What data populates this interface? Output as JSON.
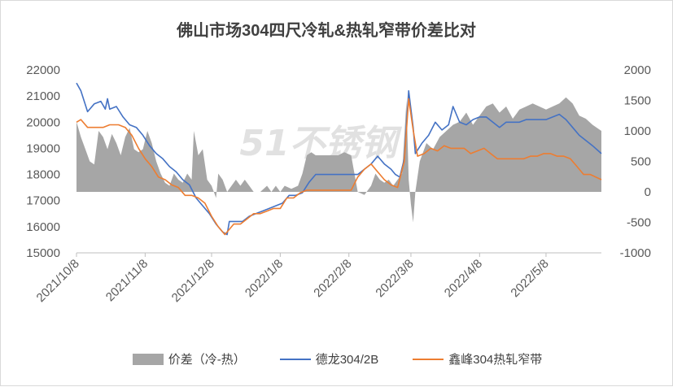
{
  "chart_data": {
    "type": "line",
    "title": "佛山市场304四尺冷轧&热轧窄带价差比对",
    "watermark": "51不锈钢",
    "x_tick_labels": [
      "2021/10/8",
      "2021/11/8",
      "2021/12/8",
      "2022/1/8",
      "2022/2/8",
      "2022/3/8",
      "2022/4/8",
      "2022/5/8"
    ],
    "x_range": [
      "2021-10-08",
      "2022-06-02"
    ],
    "y_left": {
      "ticks": [
        15000,
        16000,
        17000,
        18000,
        19000,
        20000,
        21000,
        22000
      ],
      "range": [
        15000,
        22000
      ]
    },
    "y_right": {
      "ticks": [
        -1000,
        -500,
        0,
        500,
        1000,
        1500,
        2000
      ],
      "range": [
        -1000,
        2000
      ]
    },
    "grid": false,
    "legend_position": "bottom",
    "series": [
      {
        "name": "价差（冷-热）",
        "type": "area",
        "axis": "right",
        "color": "#a6a6a6",
        "points": [
          [
            "2021-10-08",
            1150
          ],
          [
            "2021-10-10",
            900
          ],
          [
            "2021-10-12",
            700
          ],
          [
            "2021-10-14",
            500
          ],
          [
            "2021-10-16",
            450
          ],
          [
            "2021-10-18",
            1000
          ],
          [
            "2021-10-20",
            900
          ],
          [
            "2021-10-22",
            700
          ],
          [
            "2021-10-24",
            950
          ],
          [
            "2021-10-26",
            800
          ],
          [
            "2021-10-28",
            600
          ],
          [
            "2021-10-30",
            900
          ],
          [
            "2021-11-01",
            1050
          ],
          [
            "2021-11-03",
            700
          ],
          [
            "2021-11-05",
            650
          ],
          [
            "2021-11-07",
            700
          ],
          [
            "2021-11-09",
            1000
          ],
          [
            "2021-11-11",
            800
          ],
          [
            "2021-11-13",
            500
          ],
          [
            "2021-11-15",
            300
          ],
          [
            "2021-11-17",
            150
          ],
          [
            "2021-11-19",
            100
          ],
          [
            "2021-11-21",
            300
          ],
          [
            "2021-11-23",
            200
          ],
          [
            "2021-11-25",
            150
          ],
          [
            "2021-11-27",
            300
          ],
          [
            "2021-11-29",
            200
          ],
          [
            "2021-11-30",
            1000
          ],
          [
            "2021-12-02",
            600
          ],
          [
            "2021-12-04",
            700
          ],
          [
            "2021-12-06",
            200
          ],
          [
            "2021-12-08",
            100
          ],
          [
            "2021-12-10",
            -100
          ],
          [
            "2021-12-11",
            300
          ],
          [
            "2021-12-13",
            200
          ],
          [
            "2021-12-15",
            0
          ],
          [
            "2021-12-17",
            100
          ],
          [
            "2021-12-19",
            200
          ],
          [
            "2021-12-21",
            100
          ],
          [
            "2021-12-23",
            200
          ],
          [
            "2021-12-25",
            100
          ],
          [
            "2021-12-27",
            0
          ],
          [
            "2021-12-30",
            0
          ],
          [
            "2022-01-02",
            100
          ],
          [
            "2022-01-04",
            0
          ],
          [
            "2022-01-06",
            100
          ],
          [
            "2022-01-08",
            0
          ],
          [
            "2022-01-10",
            100
          ],
          [
            "2022-01-13",
            50
          ],
          [
            "2022-01-16",
            100
          ],
          [
            "2022-01-18",
            300
          ],
          [
            "2022-01-20",
            600
          ],
          [
            "2022-01-22",
            650
          ],
          [
            "2022-01-24",
            600
          ],
          [
            "2022-01-26",
            600
          ],
          [
            "2022-01-30",
            600
          ],
          [
            "2022-02-03",
            600
          ],
          [
            "2022-02-06",
            650
          ],
          [
            "2022-02-09",
            600
          ],
          [
            "2022-02-12",
            0
          ],
          [
            "2022-02-15",
            -50
          ],
          [
            "2022-02-18",
            100
          ],
          [
            "2022-02-20",
            300
          ],
          [
            "2022-02-22",
            200
          ],
          [
            "2022-02-24",
            150
          ],
          [
            "2022-02-26",
            200
          ],
          [
            "2022-02-28",
            100
          ],
          [
            "2022-03-02",
            200
          ],
          [
            "2022-03-04",
            300
          ],
          [
            "2022-03-06",
            1500
          ],
          [
            "2022-03-07",
            200
          ],
          [
            "2022-03-08",
            -200
          ],
          [
            "2022-03-09",
            -500
          ],
          [
            "2022-03-10",
            0
          ],
          [
            "2022-03-12",
            500
          ],
          [
            "2022-03-15",
            800
          ],
          [
            "2022-03-18",
            700
          ],
          [
            "2022-03-21",
            900
          ],
          [
            "2022-03-24",
            1000
          ],
          [
            "2022-03-27",
            1100
          ],
          [
            "2022-03-30",
            1150
          ],
          [
            "2022-04-02",
            1300
          ],
          [
            "2022-04-05",
            1100
          ],
          [
            "2022-04-08",
            1250
          ],
          [
            "2022-04-11",
            1400
          ],
          [
            "2022-04-14",
            1450
          ],
          [
            "2022-04-17",
            1300
          ],
          [
            "2022-04-20",
            1400
          ],
          [
            "2022-04-23",
            1200
          ],
          [
            "2022-04-26",
            1350
          ],
          [
            "2022-04-29",
            1400
          ],
          [
            "2022-05-02",
            1450
          ],
          [
            "2022-05-05",
            1400
          ],
          [
            "2022-05-08",
            1350
          ],
          [
            "2022-05-11",
            1400
          ],
          [
            "2022-05-14",
            1450
          ],
          [
            "2022-05-17",
            1550
          ],
          [
            "2022-05-20",
            1450
          ],
          [
            "2022-05-23",
            1250
          ],
          [
            "2022-05-26",
            1200
          ],
          [
            "2022-05-29",
            1100
          ],
          [
            "2022-06-02",
            1000
          ]
        ]
      },
      {
        "name": "德龙304/2B",
        "type": "line",
        "axis": "left",
        "color": "#4472c4",
        "points": [
          [
            "2021-10-08",
            21500
          ],
          [
            "2021-10-10",
            21200
          ],
          [
            "2021-10-13",
            20400
          ],
          [
            "2021-10-16",
            20700
          ],
          [
            "2021-10-19",
            20800
          ],
          [
            "2021-10-21",
            20500
          ],
          [
            "2021-10-22",
            20900
          ],
          [
            "2021-10-23",
            20500
          ],
          [
            "2021-10-26",
            20600
          ],
          [
            "2021-10-29",
            20200
          ],
          [
            "2021-11-01",
            19900
          ],
          [
            "2021-11-04",
            19800
          ],
          [
            "2021-11-07",
            19500
          ],
          [
            "2021-11-10",
            19100
          ],
          [
            "2021-11-13",
            18800
          ],
          [
            "2021-11-16",
            18600
          ],
          [
            "2021-11-19",
            18300
          ],
          [
            "2021-11-22",
            18100
          ],
          [
            "2021-11-25",
            17800
          ],
          [
            "2021-11-28",
            17600
          ],
          [
            "2021-12-01",
            17100
          ],
          [
            "2021-12-04",
            16800
          ],
          [
            "2021-12-07",
            16500
          ],
          [
            "2021-12-10",
            16100
          ],
          [
            "2021-12-13",
            15800
          ],
          [
            "2021-12-15",
            15700
          ],
          [
            "2021-12-16",
            16200
          ],
          [
            "2021-12-19",
            16200
          ],
          [
            "2021-12-22",
            16200
          ],
          [
            "2021-12-25",
            16400
          ],
          [
            "2021-12-28",
            16500
          ],
          [
            "2021-12-31",
            16600
          ],
          [
            "2022-01-03",
            16700
          ],
          [
            "2022-01-06",
            16800
          ],
          [
            "2022-01-09",
            16900
          ],
          [
            "2022-01-12",
            17200
          ],
          [
            "2022-01-15",
            17200
          ],
          [
            "2022-01-18",
            17300
          ],
          [
            "2022-01-21",
            17700
          ],
          [
            "2022-01-24",
            18000
          ],
          [
            "2022-01-27",
            18000
          ],
          [
            "2022-01-30",
            18000
          ],
          [
            "2022-02-03",
            18000
          ],
          [
            "2022-02-06",
            18000
          ],
          [
            "2022-02-09",
            18000
          ],
          [
            "2022-02-12",
            18000
          ],
          [
            "2022-02-15",
            18200
          ],
          [
            "2022-02-18",
            18400
          ],
          [
            "2022-02-21",
            18700
          ],
          [
            "2022-02-24",
            18400
          ],
          [
            "2022-02-27",
            18200
          ],
          [
            "2022-03-01",
            18000
          ],
          [
            "2022-03-03",
            17900
          ],
          [
            "2022-03-05",
            18600
          ],
          [
            "2022-03-07",
            21200
          ],
          [
            "2022-03-09",
            19800
          ],
          [
            "2022-03-10",
            18800
          ],
          [
            "2022-03-13",
            19200
          ],
          [
            "2022-03-16",
            19500
          ],
          [
            "2022-03-19",
            20000
          ],
          [
            "2022-03-22",
            19700
          ],
          [
            "2022-03-25",
            19900
          ],
          [
            "2022-03-27",
            20600
          ],
          [
            "2022-03-30",
            20000
          ],
          [
            "2022-04-02",
            19900
          ],
          [
            "2022-04-05",
            20100
          ],
          [
            "2022-04-08",
            20200
          ],
          [
            "2022-04-11",
            20200
          ],
          [
            "2022-04-14",
            20000
          ],
          [
            "2022-04-17",
            19800
          ],
          [
            "2022-04-20",
            20000
          ],
          [
            "2022-04-23",
            20000
          ],
          [
            "2022-04-26",
            20000
          ],
          [
            "2022-04-29",
            20100
          ],
          [
            "2022-05-02",
            20100
          ],
          [
            "2022-05-05",
            20100
          ],
          [
            "2022-05-08",
            20100
          ],
          [
            "2022-05-11",
            20200
          ],
          [
            "2022-05-14",
            20300
          ],
          [
            "2022-05-17",
            20100
          ],
          [
            "2022-05-20",
            19800
          ],
          [
            "2022-05-23",
            19500
          ],
          [
            "2022-05-26",
            19300
          ],
          [
            "2022-05-29",
            19100
          ],
          [
            "2022-06-02",
            18800
          ]
        ]
      },
      {
        "name": "鑫峰304热轧窄带",
        "type": "line",
        "axis": "left",
        "color": "#ed7d31",
        "points": [
          [
            "2021-10-08",
            20000
          ],
          [
            "2021-10-10",
            20100
          ],
          [
            "2021-10-13",
            19800
          ],
          [
            "2021-10-16",
            19800
          ],
          [
            "2021-10-20",
            19800
          ],
          [
            "2021-10-23",
            19900
          ],
          [
            "2021-10-27",
            19900
          ],
          [
            "2021-10-30",
            19800
          ],
          [
            "2021-11-02",
            19500
          ],
          [
            "2021-11-05",
            19000
          ],
          [
            "2021-11-08",
            18600
          ],
          [
            "2021-11-11",
            18300
          ],
          [
            "2021-11-14",
            17900
          ],
          [
            "2021-11-17",
            17800
          ],
          [
            "2021-11-20",
            17600
          ],
          [
            "2021-11-23",
            17500
          ],
          [
            "2021-11-26",
            17200
          ],
          [
            "2021-11-29",
            17200
          ],
          [
            "2021-12-02",
            17100
          ],
          [
            "2021-12-05",
            16900
          ],
          [
            "2021-12-08",
            16400
          ],
          [
            "2021-12-11",
            16000
          ],
          [
            "2021-12-14",
            15700
          ],
          [
            "2021-12-16",
            15900
          ],
          [
            "2021-12-18",
            16100
          ],
          [
            "2021-12-21",
            16100
          ],
          [
            "2021-12-24",
            16300
          ],
          [
            "2021-12-27",
            16500
          ],
          [
            "2021-12-30",
            16500
          ],
          [
            "2022-01-02",
            16600
          ],
          [
            "2022-01-05",
            16700
          ],
          [
            "2022-01-08",
            16700
          ],
          [
            "2022-01-11",
            17100
          ],
          [
            "2022-01-14",
            17100
          ],
          [
            "2022-01-17",
            17300
          ],
          [
            "2022-01-20",
            17400
          ],
          [
            "2022-01-23",
            17400
          ],
          [
            "2022-01-26",
            17400
          ],
          [
            "2022-02-02",
            17400
          ],
          [
            "2022-02-09",
            17400
          ],
          [
            "2022-02-12",
            17900
          ],
          [
            "2022-02-15",
            18200
          ],
          [
            "2022-02-18",
            18400
          ],
          [
            "2022-02-21",
            18100
          ],
          [
            "2022-02-24",
            17800
          ],
          [
            "2022-02-27",
            17600
          ],
          [
            "2022-03-02",
            17500
          ],
          [
            "2022-03-05",
            18500
          ],
          [
            "2022-03-07",
            20900
          ],
          [
            "2022-03-09",
            19700
          ],
          [
            "2022-03-11",
            18700
          ],
          [
            "2022-03-14",
            18800
          ],
          [
            "2022-03-17",
            19000
          ],
          [
            "2022-03-20",
            18900
          ],
          [
            "2022-03-23",
            19100
          ],
          [
            "2022-03-26",
            19000
          ],
          [
            "2022-03-29",
            19000
          ],
          [
            "2022-04-01",
            19000
          ],
          [
            "2022-04-04",
            18800
          ],
          [
            "2022-04-07",
            18900
          ],
          [
            "2022-04-10",
            19000
          ],
          [
            "2022-04-13",
            18800
          ],
          [
            "2022-04-16",
            18600
          ],
          [
            "2022-04-19",
            18600
          ],
          [
            "2022-04-22",
            18600
          ],
          [
            "2022-04-25",
            18600
          ],
          [
            "2022-04-28",
            18600
          ],
          [
            "2022-05-01",
            18700
          ],
          [
            "2022-05-04",
            18700
          ],
          [
            "2022-05-07",
            18800
          ],
          [
            "2022-05-10",
            18800
          ],
          [
            "2022-05-13",
            18700
          ],
          [
            "2022-05-16",
            18700
          ],
          [
            "2022-05-19",
            18600
          ],
          [
            "2022-05-22",
            18300
          ],
          [
            "2022-05-25",
            18000
          ],
          [
            "2022-05-28",
            18000
          ],
          [
            "2022-06-02",
            17800
          ]
        ]
      }
    ]
  }
}
